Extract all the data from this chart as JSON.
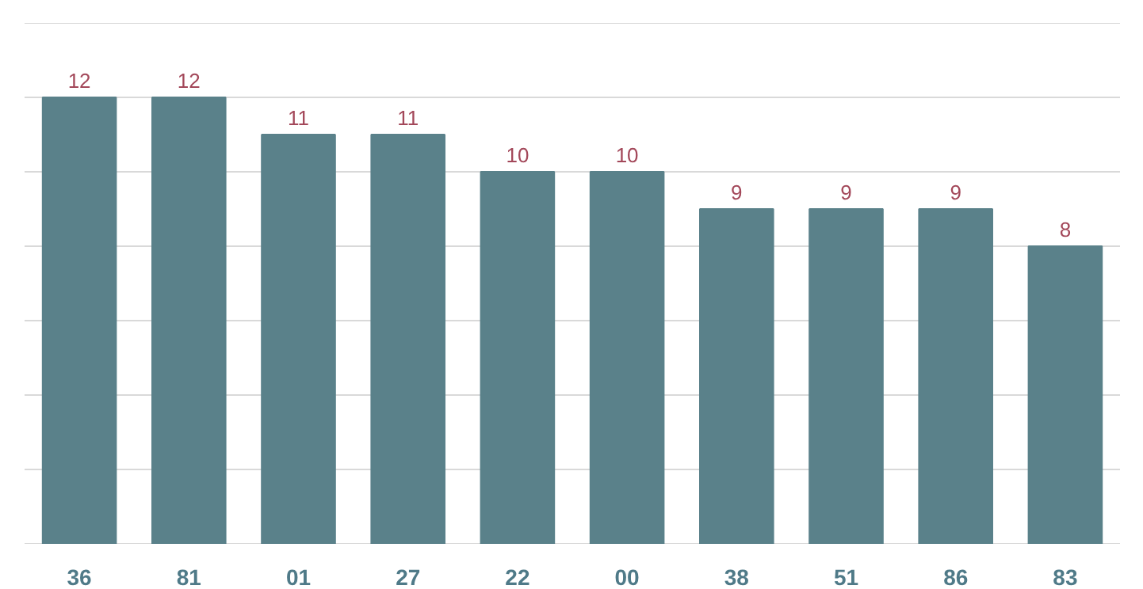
{
  "chart_data": {
    "type": "bar",
    "categories": [
      "36",
      "81",
      "01",
      "27",
      "22",
      "00",
      "38",
      "51",
      "86",
      "83"
    ],
    "values": [
      12,
      12,
      11,
      11,
      10,
      10,
      9,
      9,
      9,
      8
    ],
    "color": "#5a818a",
    "data_labels": true,
    "ylim": [
      0,
      14
    ],
    "yticks": [
      {
        "value": 0,
        "label": null
      },
      {
        "value": 2,
        "label": null
      },
      {
        "value": 4,
        "label": null
      },
      {
        "value": 6,
        "label": null
      },
      {
        "value": 8,
        "label": null
      },
      {
        "value": 10,
        "label": null
      },
      {
        "value": 12,
        "label": null
      },
      {
        "value": 14,
        "label": null
      }
    ],
    "grid": "y",
    "tick_labels": "x"
  }
}
